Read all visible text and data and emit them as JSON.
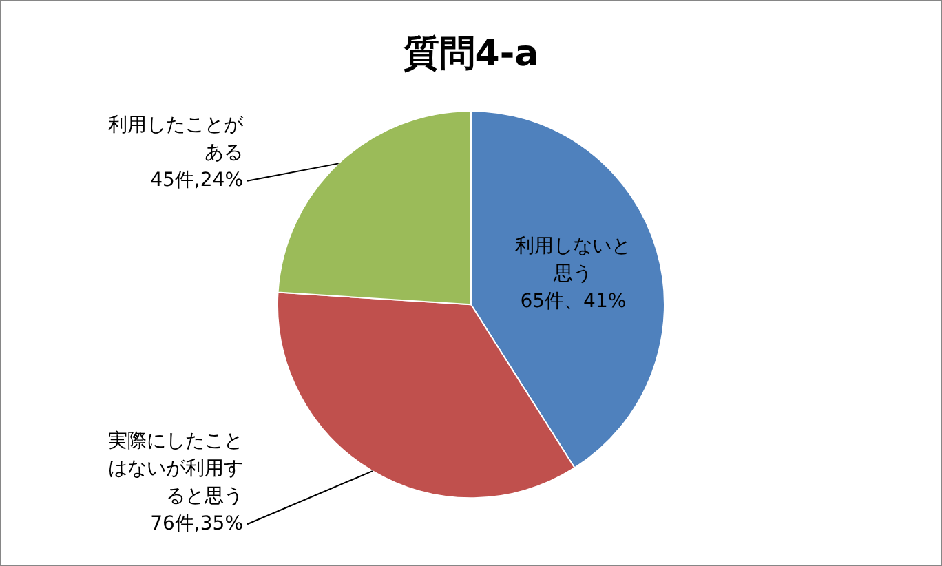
{
  "chart_data": {
    "type": "pie",
    "title": "質問4-a",
    "categories": [
      "利用しないと思う",
      "実際にしたことはないが利用すると思う",
      "利用したことがある"
    ],
    "values": [
      41,
      35,
      24
    ],
    "colors": [
      "#4f81bd",
      "#c0504d",
      "#9bbb59"
    ],
    "value_labels": [
      "65件、41%",
      "76件,35%",
      "45件,24%"
    ],
    "legend": false
  }
}
